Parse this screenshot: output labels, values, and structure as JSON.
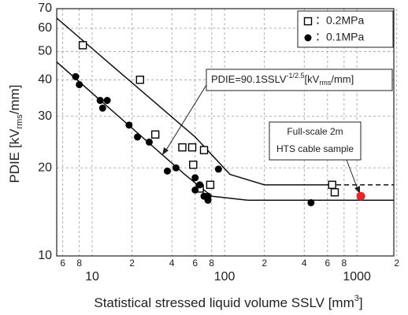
{
  "chart_data": {
    "type": "scatter",
    "log_x": true,
    "log_y": true,
    "grid": true,
    "xlabel": {
      "text": "Statistical stressed liquid volume SSLV [mm",
      "sup": "3",
      "end": "]"
    },
    "ylabel": {
      "text": "PDIE [kV",
      "sub": "rms",
      "end": "/mm]"
    },
    "xlim": [
      5.4,
      1900
    ],
    "ylim": [
      10,
      70
    ],
    "xticks": [
      {
        "value": 6,
        "label": "6"
      },
      {
        "value": 8,
        "label": "8"
      },
      10,
      {
        "value": 20,
        "label": "2"
      },
      {
        "value": 40,
        "label": "4"
      },
      {
        "value": 60,
        "label": "6"
      },
      {
        "value": 80,
        "label": "8"
      },
      100,
      {
        "value": 200,
        "label": "2"
      },
      {
        "value": 400,
        "label": "4"
      },
      {
        "value": 600,
        "label": "6"
      },
      {
        "value": 800,
        "label": "8"
      },
      1000,
      {
        "value": 2000,
        "label": "2"
      }
    ],
    "yticks": [
      10,
      20,
      30,
      40,
      50,
      60,
      70
    ],
    "legend": "top-right",
    "series": [
      {
        "name": "：0.2MPa",
        "marker": "square",
        "color": "#000000",
        "x": [
          8.5,
          23,
          30,
          48,
          57,
          58,
          70,
          65,
          78,
          650,
          680
        ],
        "values": [
          52.5,
          40,
          26,
          23.5,
          23.5,
          20.5,
          23,
          17,
          17.5,
          17.5,
          16.5
        ]
      },
      {
        "name": "：0.1MPa",
        "marker": "circle",
        "color": "#000000",
        "x": [
          7.5,
          8,
          11.5,
          12,
          13,
          19,
          22,
          27,
          37,
          43,
          60,
          60,
          65,
          70,
          75,
          75,
          90,
          450
        ],
        "values": [
          41,
          38.5,
          34,
          32,
          34,
          28,
          25.5,
          24.5,
          19.5,
          20,
          18.5,
          16.8,
          17.5,
          16,
          16,
          15.5,
          19.8,
          15.2
        ]
      },
      {
        "marker": "circle",
        "color": "#e8262a",
        "x": [
          1070
        ],
        "values": [
          16
        ]
      }
    ],
    "fits": [
      {
        "x": [
          5.4,
          60,
          110,
          200,
          700
        ],
        "values": [
          65,
          25.5,
          19,
          17.5,
          17.5
        ]
      },
      {
        "x": [
          700,
          1900
        ],
        "values": [
          17.5,
          17.5
        ],
        "dashed": true
      },
      {
        "x": [
          5.4,
          50,
          80,
          150,
          1900
        ],
        "values": [
          46,
          19,
          16,
          15.5,
          15.5
        ]
      }
    ],
    "annotations": [
      {
        "text": "PDIE=90.1SSLV",
        "sup": "-1/2.5",
        "mid": "[kV",
        "sub": "rms",
        "end": "/mm]"
      },
      {
        "lines": [
          "Full-scale 2m",
          "HTS cable sample"
        ]
      }
    ]
  }
}
